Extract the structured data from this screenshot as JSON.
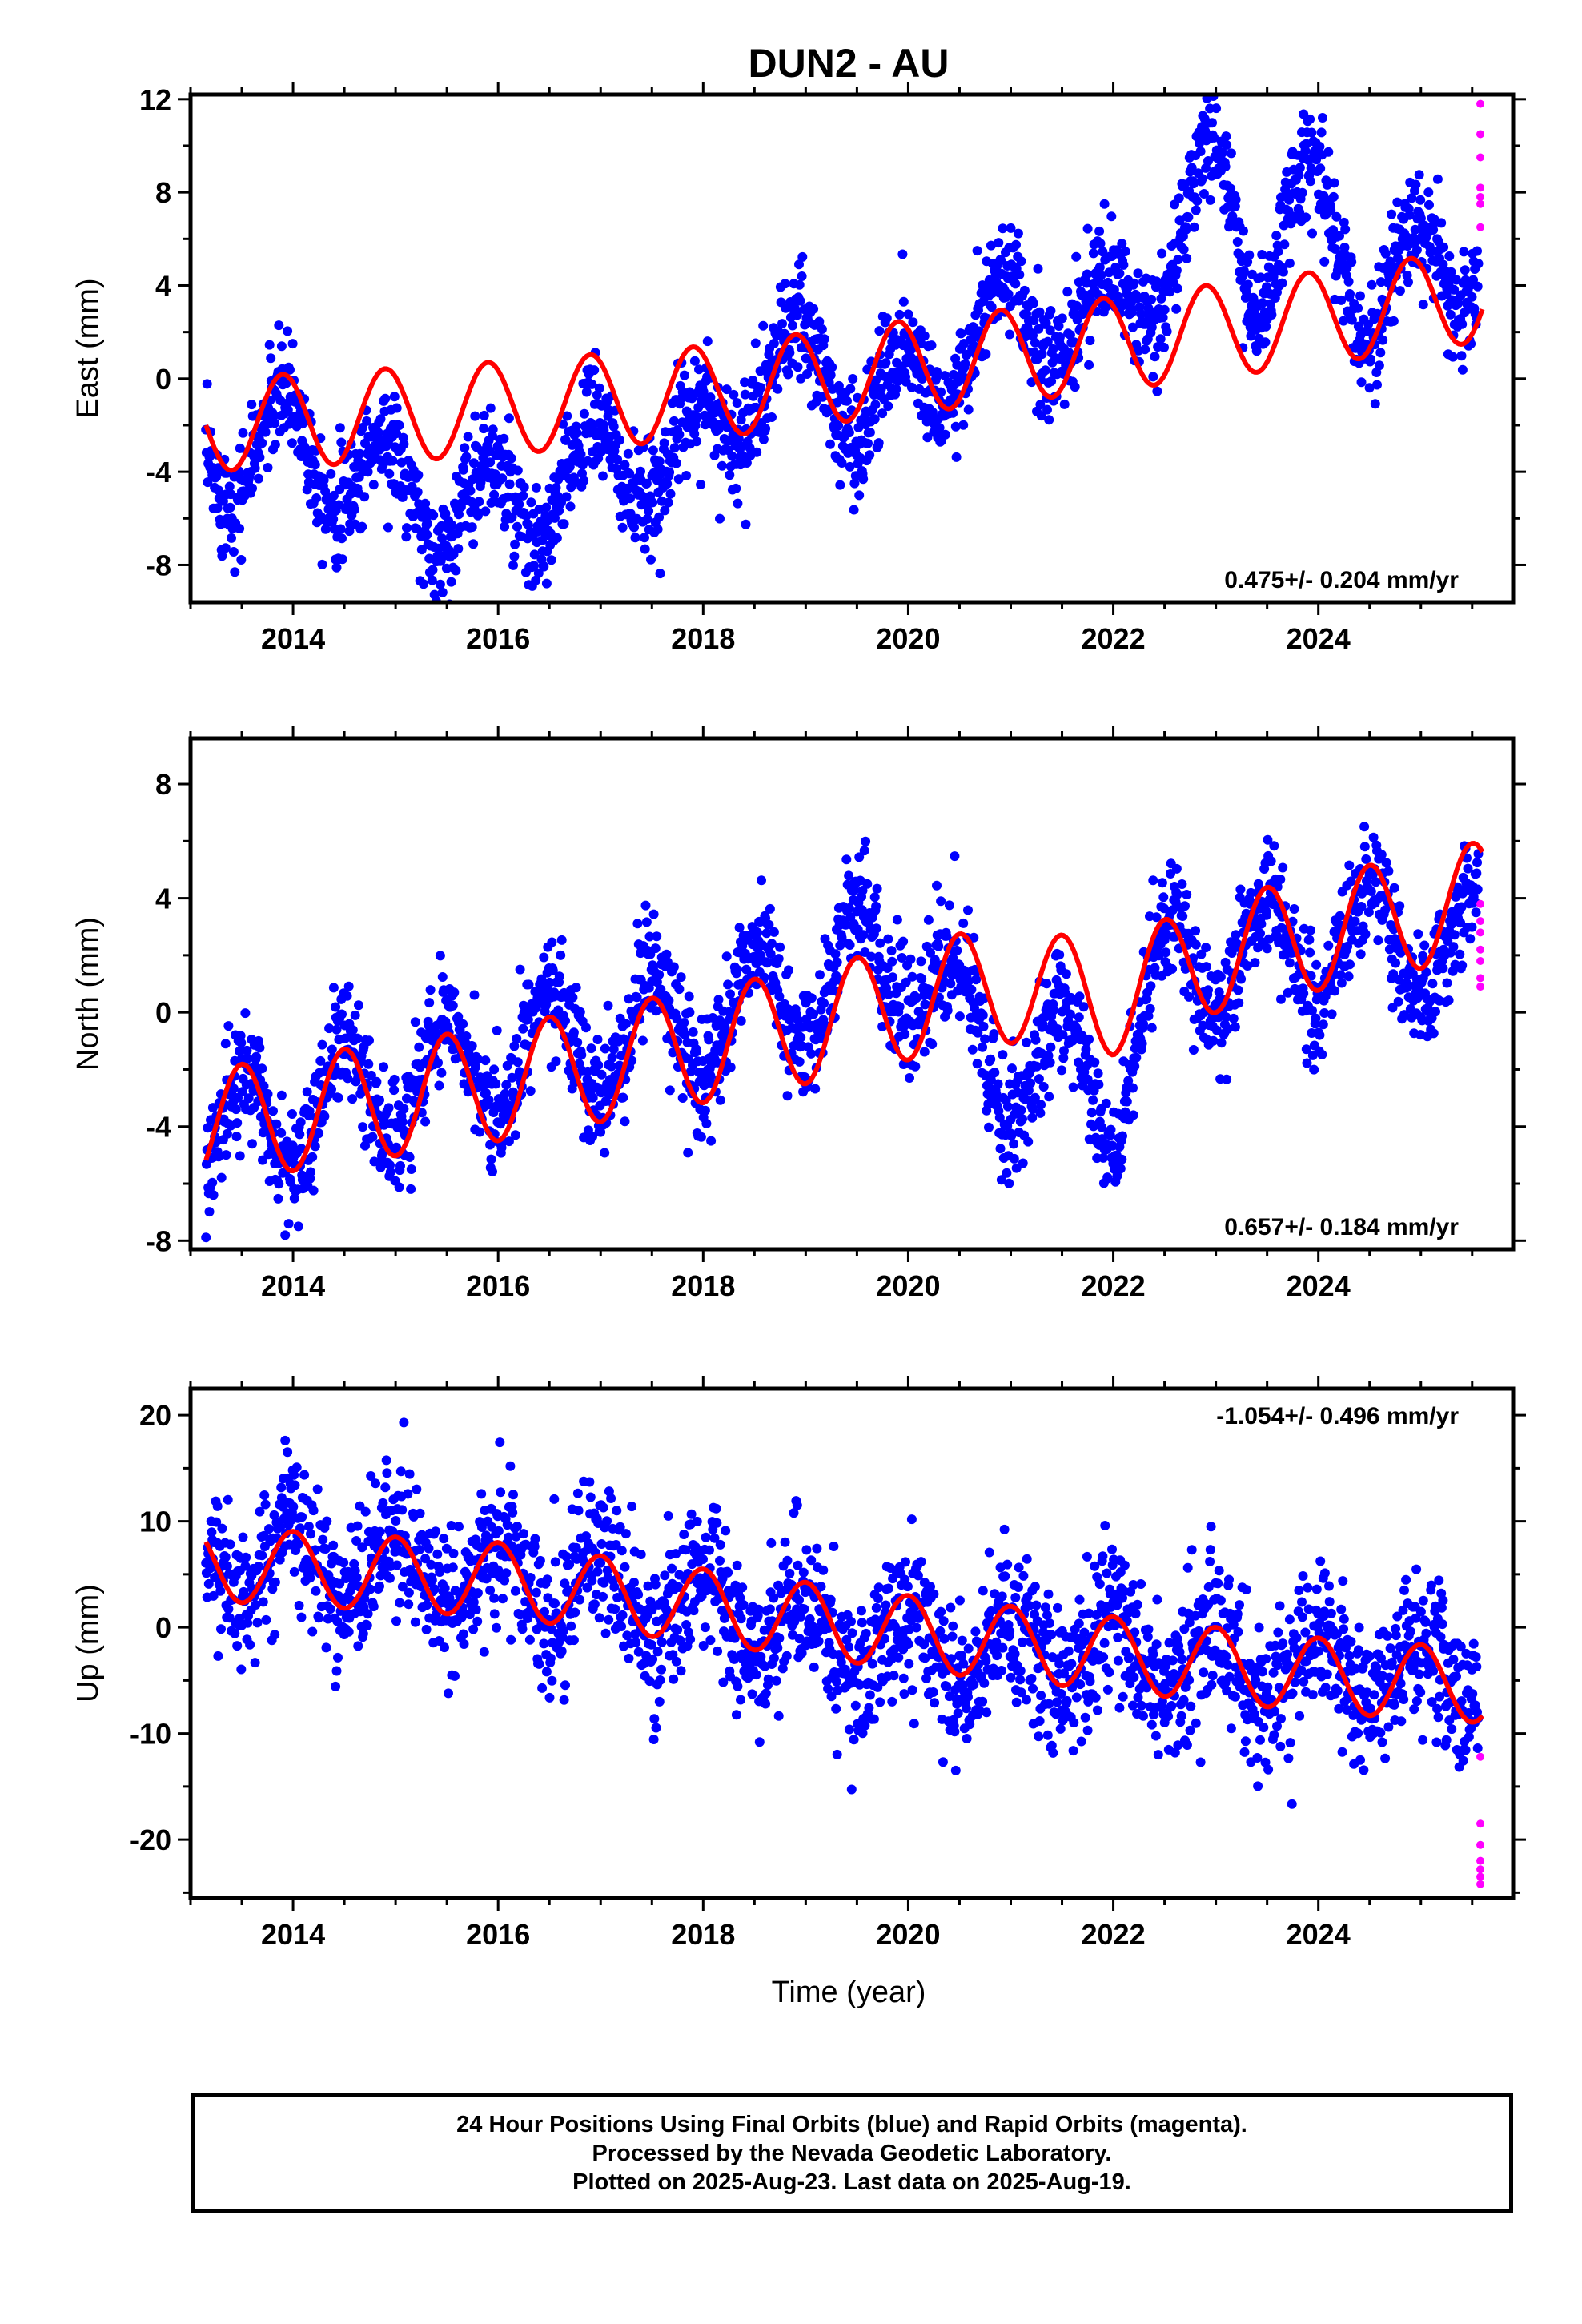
{
  "chart_data": {
    "type": "scatter",
    "title": "DUN2 - AU",
    "xlabel": "Time (year)",
    "x_range": [
      2013.0,
      2025.9
    ],
    "x_ticks": [
      "2014",
      "2016",
      "2018",
      "2020",
      "2022",
      "2024"
    ],
    "grid": false,
    "colors": {
      "final": "#0000ff",
      "rapid": "#ff00ff",
      "model": "#ff0000"
    },
    "panels": [
      {
        "name": "east",
        "ylabel": "East (mm)",
        "ylim": [
          -9.6,
          12.2
        ],
        "yticks": [
          "-8",
          "-4",
          "0",
          "4",
          "8",
          "12"
        ],
        "rate_label": "0.475+/- 0.204 mm/yr",
        "rate_position": "bottom-right",
        "final_trend": [
          [
            2013.15,
            -3.5
          ],
          [
            2014.0,
            -2.5
          ],
          [
            2015.3,
            -5.5
          ],
          [
            2016.3,
            -5.5
          ],
          [
            2017.0,
            -3.5
          ],
          [
            2017.8,
            -3.5
          ],
          [
            2018.5,
            0.0
          ],
          [
            2019.2,
            0.5
          ],
          [
            2019.6,
            -1.5
          ],
          [
            2020.4,
            1.0
          ],
          [
            2021.0,
            2.5
          ],
          [
            2022.0,
            2.5
          ],
          [
            2022.6,
            5.5
          ],
          [
            2023.0,
            9.0
          ],
          [
            2023.4,
            4.5
          ],
          [
            2024.0,
            8.0
          ],
          [
            2024.5,
            3.0
          ],
          [
            2025.0,
            5.0
          ],
          [
            2025.6,
            5.0
          ]
        ],
        "final_seasonal_amp": 2.0,
        "final_scatter": 1.2,
        "model_trend": [
          [
            2013.15,
            -2.0
          ],
          [
            2015.6,
            -1.4
          ],
          [
            2018.0,
            -0.6
          ],
          [
            2020.0,
            0.5
          ],
          [
            2022.0,
            1.5
          ],
          [
            2024.0,
            2.6
          ],
          [
            2025.6,
            3.6
          ]
        ],
        "model_seasonal_amp": 2.0,
        "model_phase": 2013.9,
        "rapid": [
          [
            2025.58,
            11.8
          ],
          [
            2025.58,
            10.5
          ],
          [
            2025.58,
            9.5
          ],
          [
            2025.58,
            8.2
          ],
          [
            2025.58,
            7.8
          ],
          [
            2025.58,
            7.5
          ],
          [
            2025.58,
            6.5
          ]
        ]
      },
      {
        "name": "north",
        "ylabel": "North (mm)",
        "ylim": [
          -8.3,
          9.6
        ],
        "yticks": [
          "-8",
          "-4",
          "0",
          "4",
          "8"
        ],
        "rate_label": "0.657+/- 0.184 mm/yr",
        "rate_position": "bottom-right",
        "final_trend": [
          [
            2013.15,
            -4.5
          ],
          [
            2014.0,
            -3.5
          ],
          [
            2015.0,
            -2.5
          ],
          [
            2016.0,
            -1.5
          ],
          [
            2017.0,
            -1.0
          ],
          [
            2018.0,
            -0.5
          ],
          [
            2019.0,
            1.0
          ],
          [
            2020.0,
            2.0
          ],
          [
            2020.8,
            -1.5
          ],
          [
            2021.5,
            -2.0
          ],
          [
            2022.0,
            -3.0
          ],
          [
            2022.6,
            2.0
          ],
          [
            2023.5,
            2.0
          ],
          [
            2024.5,
            2.5
          ],
          [
            2025.6,
            2.5
          ]
        ],
        "final_seasonal_amp": 2.0,
        "final_scatter": 1.0,
        "model_trend": [
          [
            2013.15,
            -4.0
          ],
          [
            2016.0,
            -2.5
          ],
          [
            2019.0,
            -0.5
          ],
          [
            2020.8,
            1.0
          ],
          [
            2022.0,
            0.5
          ],
          [
            2023.0,
            2.0
          ],
          [
            2025.6,
            4.0
          ]
        ],
        "model_seasonal_amp": 2.0,
        "model_phase": 2013.5,
        "rapid": [
          [
            2025.58,
            3.8
          ],
          [
            2025.58,
            3.2
          ],
          [
            2025.58,
            2.8
          ],
          [
            2025.58,
            2.2
          ],
          [
            2025.58,
            1.8
          ],
          [
            2025.58,
            1.2
          ],
          [
            2025.58,
            0.9
          ]
        ]
      },
      {
        "name": "up",
        "ylabel": "Up (mm)",
        "ylim": [
          -25.5,
          22.5
        ],
        "yticks": [
          "-20",
          "-10",
          "0",
          "10",
          "20"
        ],
        "rate_label": "-1.054+/- 0.496 mm/yr",
        "rate_position": "top-right",
        "final_trend": [
          [
            2013.15,
            6.0
          ],
          [
            2014.0,
            6.5
          ],
          [
            2016.0,
            5.0
          ],
          [
            2018.0,
            2.0
          ],
          [
            2020.0,
            -2.5
          ],
          [
            2021.0,
            -2.0
          ],
          [
            2022.0,
            -3.0
          ],
          [
            2024.0,
            -3.5
          ],
          [
            2025.6,
            -5.0
          ]
        ],
        "final_seasonal_amp": 3.5,
        "final_scatter": 3.5,
        "model_trend": [
          [
            2013.15,
            6.0
          ],
          [
            2016.0,
            4.5
          ],
          [
            2018.0,
            2.0
          ],
          [
            2020.0,
            -0.5
          ],
          [
            2022.0,
            -2.5
          ],
          [
            2024.0,
            -4.5
          ],
          [
            2025.6,
            -5.5
          ]
        ],
        "model_seasonal_amp": 3.5,
        "model_phase": 2014.0,
        "rapid": [
          [
            2025.58,
            -12.2
          ],
          [
            2025.58,
            -18.5
          ],
          [
            2025.58,
            -20.5
          ],
          [
            2025.58,
            -22.0
          ],
          [
            2025.58,
            -22.8
          ],
          [
            2025.58,
            -23.5
          ],
          [
            2025.58,
            -24.2
          ]
        ]
      }
    ]
  },
  "footer": {
    "line1": "24 Hour Positions Using Final Orbits (blue) and Rapid Orbits (magenta).",
    "line2": "Processed by the Nevada Geodetic Laboratory.",
    "line3": "Plotted on 2025-Aug-23. Last data on 2025-Aug-19."
  }
}
